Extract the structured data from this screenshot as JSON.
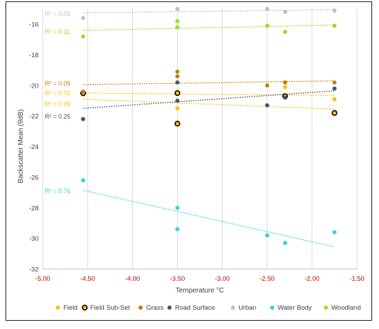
{
  "chart_data": {
    "type": "scatter",
    "title": "",
    "xlabel": "Temperature °C",
    "ylabel": "Backscatter Mean (θdB)",
    "xlim": [
      -5.0,
      -1.5
    ],
    "ylim": [
      -32,
      -15
    ],
    "x_ticks": [
      "-5.00",
      "-4.50",
      "-4.00",
      "-3.50",
      "-3.00",
      "-2.50",
      "-2.00",
      "-1.50"
    ],
    "y_ticks": [
      "-16",
      "-18",
      "-20",
      "-22",
      "-24",
      "-26",
      "-28",
      "-30",
      "-32"
    ],
    "grid": "vertical",
    "legend_position": "bottom",
    "series": [
      {
        "name": "Field",
        "color": "#ffc000",
        "hollow": false,
        "x": [
          -4.55,
          -3.5,
          -3.5,
          -2.3,
          -1.75
        ],
        "y": [
          -20.6,
          -21.5,
          -20.5,
          -20.1,
          -20.9
        ],
        "r2": "R² = 0.01",
        "trend": [
          [
            -4.55,
            -20.5
          ],
          [
            -1.75,
            -20.65
          ]
        ]
      },
      {
        "name": "Field Sub-Set",
        "color": "#000000",
        "fill": "#ffc000",
        "hollow": true,
        "x": [
          -4.55,
          -3.5,
          -3.5,
          -2.3,
          -1.75
        ],
        "y": [
          -20.5,
          -20.5,
          -22.5,
          -20.7,
          -21.8
        ],
        "r2": "R² = 0.09",
        "trend": [
          [
            -4.55,
            -20.9
          ],
          [
            -1.75,
            -21.55
          ]
        ]
      },
      {
        "name": "Grass",
        "color": "#b8860b",
        "hollow": false,
        "x": [
          -4.55,
          -3.5,
          -3.5,
          -2.5,
          -2.3,
          -1.75
        ],
        "y": [
          -20.4,
          -19.1,
          -19.4,
          -20.0,
          -19.8,
          -19.8
        ],
        "r2": "R² = 0.05",
        "trend": [
          [
            -4.55,
            -19.95
          ],
          [
            -1.75,
            -19.7
          ]
        ]
      },
      {
        "name": "Road Surface",
        "color": "#44546a",
        "hollow": false,
        "x": [
          -4.55,
          -3.5,
          -3.5,
          -2.5,
          -2.3,
          -1.75
        ],
        "y": [
          -22.2,
          -19.8,
          -21.0,
          -21.3,
          -20.8,
          -20.2
        ],
        "r2": "R² = 0.25",
        "trend": [
          [
            -4.55,
            -21.5
          ],
          [
            -1.75,
            -20.35
          ]
        ]
      },
      {
        "name": "Urban",
        "color": "#bfbfbf",
        "hollow": false,
        "x": [
          -4.55,
          -3.5,
          -2.5,
          -2.3,
          -1.75
        ],
        "y": [
          -15.6,
          -15.0,
          -15.0,
          -15.2,
          -15.1
        ],
        "r2": "R² = 0.05",
        "trend": [
          [
            -4.55,
            -15.25
          ],
          [
            -1.75,
            -15.05
          ]
        ]
      },
      {
        "name": "Water Body",
        "color": "#33d1e0",
        "hollow": false,
        "x": [
          -4.55,
          -3.5,
          -3.5,
          -2.5,
          -2.3,
          -1.75
        ],
        "y": [
          -26.2,
          -28.0,
          -29.4,
          -29.8,
          -30.3,
          -29.6
        ],
        "r2": "R² = 0.76",
        "trend": [
          [
            -4.55,
            -26.85
          ],
          [
            -1.75,
            -30.55
          ]
        ]
      },
      {
        "name": "Woodland",
        "color": "#99e019",
        "hollow": false,
        "x": [
          -4.55,
          -3.5,
          -3.5,
          -2.5,
          -2.3,
          -1.75
        ],
        "y": [
          -16.8,
          -15.8,
          -16.2,
          -16.1,
          -16.5,
          -16.1
        ],
        "r2": "R² = 0.11",
        "trend": [
          [
            -4.55,
            -16.4
          ],
          [
            -1.75,
            -16.05
          ]
        ]
      }
    ]
  }
}
